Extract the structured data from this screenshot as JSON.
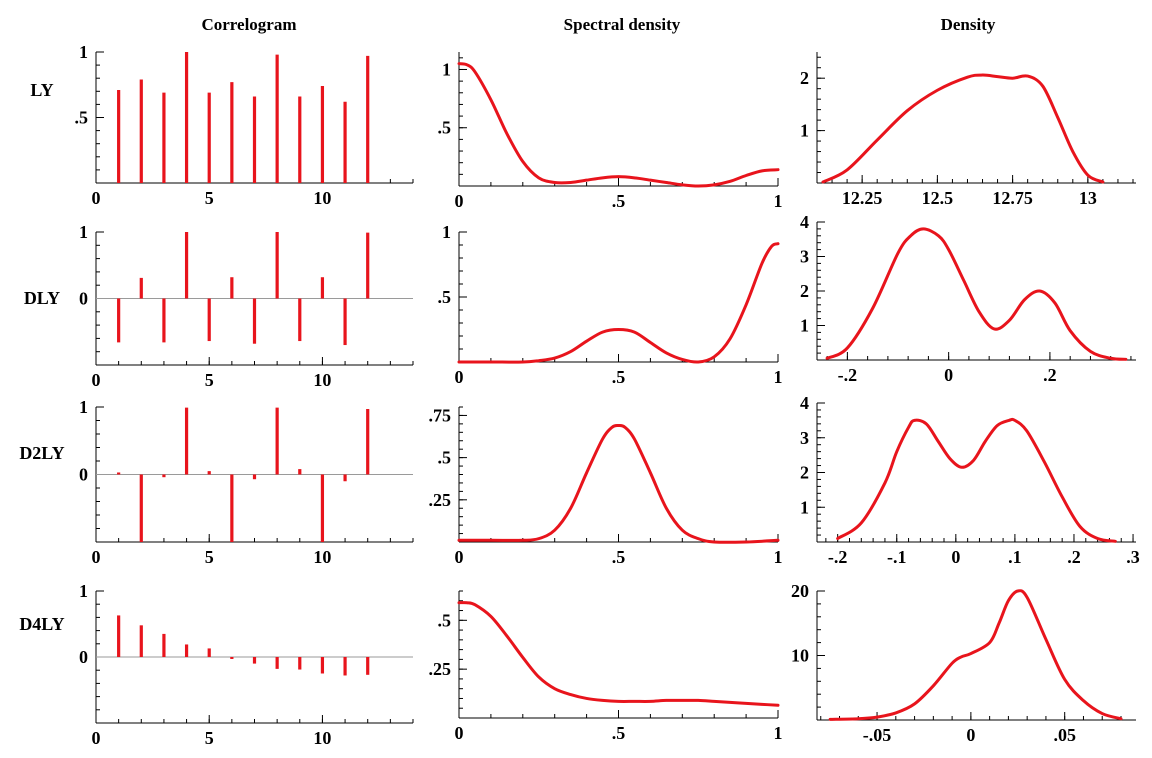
{
  "colors": {
    "series": "#e8141c",
    "axis": "#000000",
    "zero_line": "#9a9a9a"
  },
  "column_titles": [
    "Correlogram",
    "Spectral density",
    "Density"
  ],
  "row_labels": [
    "LY",
    "DLY",
    "D2LY",
    "D4LY"
  ],
  "chart_data": [
    {
      "type": "bar",
      "panel": "Correlogram LY",
      "x": [
        1,
        2,
        3,
        4,
        5,
        6,
        7,
        8,
        9,
        10,
        11,
        12
      ],
      "values": [
        0.71,
        0.79,
        0.69,
        1.0,
        0.69,
        0.77,
        0.66,
        0.98,
        0.66,
        0.74,
        0.62,
        0.97
      ],
      "xlim": [
        0,
        14
      ],
      "ylim": [
        0,
        1
      ],
      "xticks": [
        0,
        5,
        10
      ],
      "xtick_labels": [
        "0",
        "5",
        "10"
      ],
      "yticks": [
        0.5,
        1
      ],
      "ytick_labels": [
        ".5",
        "1"
      ]
    },
    {
      "type": "line",
      "panel": "Spectral density LY",
      "x": [
        0,
        0.025,
        0.05,
        0.1,
        0.15,
        0.2,
        0.25,
        0.3,
        0.35,
        0.4,
        0.45,
        0.5,
        0.55,
        0.6,
        0.65,
        0.7,
        0.75,
        0.8,
        0.85,
        0.9,
        0.95,
        1.0
      ],
      "y": [
        1.05,
        1.04,
        0.98,
        0.74,
        0.45,
        0.21,
        0.07,
        0.03,
        0.03,
        0.05,
        0.07,
        0.08,
        0.07,
        0.05,
        0.03,
        0.01,
        0.0,
        0.01,
        0.04,
        0.09,
        0.13,
        0.14
      ],
      "xlim": [
        0,
        1
      ],
      "ylim": [
        0,
        1.15
      ],
      "xticks": [
        0,
        0.5,
        1
      ],
      "xtick_labels": [
        "0",
        ".5",
        "1"
      ],
      "yticks": [
        0.5,
        1
      ],
      "ytick_labels": [
        ".5",
        "1"
      ]
    },
    {
      "type": "line",
      "panel": "Density LY",
      "x": [
        12.12,
        12.2,
        12.3,
        12.4,
        12.5,
        12.6,
        12.65,
        12.7,
        12.75,
        12.8,
        12.85,
        12.9,
        12.95,
        13.0,
        13.05
      ],
      "y": [
        0.02,
        0.25,
        0.82,
        1.38,
        1.77,
        2.02,
        2.06,
        2.03,
        2.0,
        2.04,
        1.85,
        1.25,
        0.6,
        0.15,
        0.02
      ],
      "xlim": [
        12.1,
        13.16
      ],
      "ylim": [
        0,
        2.5
      ],
      "xticks": [
        12.25,
        12.5,
        12.75,
        13
      ],
      "xtick_labels": [
        "12.25",
        "12.5",
        "12.75",
        "13"
      ],
      "yticks": [
        1,
        2
      ],
      "ytick_labels": [
        "1",
        "2"
      ]
    },
    {
      "type": "bar",
      "panel": "Correlogram DLY",
      "x": [
        1,
        2,
        3,
        4,
        5,
        6,
        7,
        8,
        9,
        10,
        11,
        12
      ],
      "values": [
        -0.66,
        0.31,
        -0.66,
        1.0,
        -0.64,
        0.32,
        -0.68,
        1.0,
        -0.64,
        0.32,
        -0.7,
        0.99
      ],
      "xlim": [
        0,
        14
      ],
      "ylim": [
        -1,
        1
      ],
      "xticks": [
        0,
        5,
        10
      ],
      "xtick_labels": [
        "0",
        "5",
        "10"
      ],
      "yticks": [
        0,
        1
      ],
      "ytick_labels": [
        "0",
        "1"
      ]
    },
    {
      "type": "line",
      "panel": "Spectral density DLY",
      "x": [
        0,
        0.1,
        0.2,
        0.25,
        0.3,
        0.35,
        0.4,
        0.45,
        0.5,
        0.55,
        0.6,
        0.65,
        0.7,
        0.75,
        0.8,
        0.85,
        0.9,
        0.95,
        0.98,
        1.0
      ],
      "y": [
        0.0,
        0.0,
        0.0,
        0.01,
        0.03,
        0.08,
        0.16,
        0.23,
        0.25,
        0.23,
        0.15,
        0.07,
        0.02,
        0.0,
        0.04,
        0.18,
        0.44,
        0.76,
        0.89,
        0.91
      ],
      "xlim": [
        0,
        1
      ],
      "ylim": [
        0,
        1
      ],
      "xticks": [
        0,
        0.5,
        1
      ],
      "xtick_labels": [
        "0",
        ".5",
        "1"
      ],
      "yticks": [
        0.5,
        1
      ],
      "ytick_labels": [
        ".5",
        "1"
      ]
    },
    {
      "type": "line",
      "panel": "Density DLY",
      "x": [
        -0.24,
        -0.2,
        -0.15,
        -0.1,
        -0.075,
        -0.05,
        -0.02,
        0.0,
        0.03,
        0.06,
        0.09,
        0.12,
        0.15,
        0.18,
        0.21,
        0.24,
        0.28,
        0.32,
        0.35
      ],
      "y": [
        0.05,
        0.35,
        1.5,
        3.1,
        3.6,
        3.8,
        3.6,
        3.2,
        2.3,
        1.4,
        0.9,
        1.15,
        1.75,
        2.0,
        1.65,
        0.85,
        0.25,
        0.05,
        0.02
      ],
      "xlim": [
        -0.26,
        0.37
      ],
      "ylim": [
        0,
        4
      ],
      "xticks": [
        -0.2,
        0,
        0.2
      ],
      "xtick_labels": [
        "-.2",
        "0",
        ".2"
      ],
      "yticks": [
        1,
        2,
        3,
        4
      ],
      "ytick_labels": [
        "1",
        "2",
        "3",
        "4"
      ]
    },
    {
      "type": "bar",
      "panel": "Correlogram D2LY",
      "x": [
        1,
        2,
        3,
        4,
        5,
        6,
        7,
        8,
        9,
        10,
        11,
        12
      ],
      "values": [
        0.03,
        -1.0,
        -0.04,
        0.99,
        0.05,
        -1.0,
        -0.07,
        0.99,
        0.08,
        -1.0,
        -0.1,
        0.97
      ],
      "xlim": [
        0,
        14
      ],
      "ylim": [
        -1,
        1
      ],
      "xticks": [
        0,
        5,
        10
      ],
      "xtick_labels": [
        "0",
        "5",
        "10"
      ],
      "yticks": [
        0,
        1
      ],
      "ytick_labels": [
        "0",
        "1"
      ]
    },
    {
      "type": "line",
      "panel": "Spectral density D2LY",
      "x": [
        0,
        0.1,
        0.2,
        0.25,
        0.3,
        0.35,
        0.4,
        0.45,
        0.48,
        0.5,
        0.52,
        0.55,
        0.6,
        0.65,
        0.7,
        0.75,
        0.8,
        0.9,
        1.0
      ],
      "y": [
        0.01,
        0.01,
        0.01,
        0.02,
        0.07,
        0.2,
        0.41,
        0.61,
        0.68,
        0.69,
        0.68,
        0.61,
        0.41,
        0.2,
        0.07,
        0.02,
        0.0,
        0.0,
        0.01
      ],
      "xlim": [
        0,
        1
      ],
      "ylim": [
        0,
        0.8
      ],
      "xticks": [
        0,
        0.5,
        1
      ],
      "xtick_labels": [
        "0",
        ".5",
        "1"
      ],
      "yticks": [
        0.25,
        0.5,
        0.75
      ],
      "ytick_labels": [
        ".25",
        ".5",
        ".75"
      ]
    },
    {
      "type": "line",
      "panel": "Density D2LY",
      "x": [
        -0.2,
        -0.16,
        -0.12,
        -0.1,
        -0.08,
        -0.07,
        -0.05,
        -0.03,
        -0.01,
        0.01,
        0.03,
        0.05,
        0.07,
        0.09,
        0.1,
        0.12,
        0.15,
        0.18,
        0.21,
        0.24,
        0.27
      ],
      "y": [
        0.1,
        0.55,
        1.7,
        2.6,
        3.3,
        3.5,
        3.4,
        2.9,
        2.4,
        2.15,
        2.35,
        2.9,
        3.35,
        3.5,
        3.5,
        3.2,
        2.3,
        1.3,
        0.45,
        0.1,
        0.02
      ],
      "xlim": [
        -0.235,
        0.305
      ],
      "ylim": [
        0,
        4
      ],
      "xticks": [
        -0.2,
        -0.1,
        0,
        0.1,
        0.2,
        0.3
      ],
      "xtick_labels": [
        "-.2",
        "-.1",
        "0",
        ".1",
        ".2",
        ".3"
      ],
      "yticks": [
        1,
        2,
        3,
        4
      ],
      "ytick_labels": [
        "1",
        "2",
        "3",
        "4"
      ]
    },
    {
      "type": "bar",
      "panel": "Correlogram D4LY",
      "x": [
        1,
        2,
        3,
        4,
        5,
        6,
        7,
        8,
        9,
        10,
        11,
        12
      ],
      "values": [
        0.63,
        0.48,
        0.35,
        0.19,
        0.13,
        -0.03,
        -0.1,
        -0.18,
        -0.19,
        -0.25,
        -0.28,
        -0.27
      ],
      "xlim": [
        0,
        14
      ],
      "ylim": [
        -1,
        1
      ],
      "xticks": [
        0,
        5,
        10
      ],
      "xtick_labels": [
        "0",
        "5",
        "10"
      ],
      "yticks": [
        0,
        1
      ],
      "ytick_labels": [
        "0",
        "1"
      ]
    },
    {
      "type": "line",
      "panel": "Spectral density D4LY",
      "x": [
        0,
        0.025,
        0.05,
        0.1,
        0.15,
        0.2,
        0.25,
        0.3,
        0.35,
        0.4,
        0.45,
        0.5,
        0.55,
        0.6,
        0.65,
        0.7,
        0.75,
        0.8,
        0.85,
        0.9,
        0.95,
        1.0
      ],
      "y": [
        0.59,
        0.59,
        0.58,
        0.52,
        0.42,
        0.31,
        0.21,
        0.15,
        0.12,
        0.1,
        0.09,
        0.085,
        0.085,
        0.085,
        0.09,
        0.09,
        0.09,
        0.085,
        0.08,
        0.075,
        0.07,
        0.065
      ],
      "xlim": [
        0,
        1
      ],
      "ylim": [
        0,
        0.65
      ],
      "xticks": [
        0,
        0.5,
        1
      ],
      "xtick_labels": [
        "0",
        ".5",
        "1"
      ],
      "yticks": [
        0.25,
        0.5
      ],
      "ytick_labels": [
        ".25",
        ".5"
      ]
    },
    {
      "type": "line",
      "panel": "Density D4LY",
      "x": [
        -0.075,
        -0.06,
        -0.05,
        -0.04,
        -0.03,
        -0.02,
        -0.01,
        -0.005,
        0.0,
        0.01,
        0.015,
        0.02,
        0.025,
        0.03,
        0.04,
        0.05,
        0.06,
        0.07,
        0.08
      ],
      "y": [
        0.1,
        0.2,
        0.45,
        1.1,
        2.5,
        5.3,
        8.8,
        9.8,
        10.3,
        12.0,
        15.0,
        18.5,
        20.0,
        19.0,
        12.5,
        6.3,
        3.0,
        1.0,
        0.2
      ],
      "xlim": [
        -0.082,
        0.088
      ],
      "ylim": [
        0,
        20
      ],
      "xticks": [
        -0.05,
        0,
        0.05
      ],
      "xtick_labels": [
        "-.05",
        "0",
        ".05"
      ],
      "yticks": [
        10,
        20
      ],
      "ytick_labels": [
        "10",
        "20"
      ]
    }
  ]
}
